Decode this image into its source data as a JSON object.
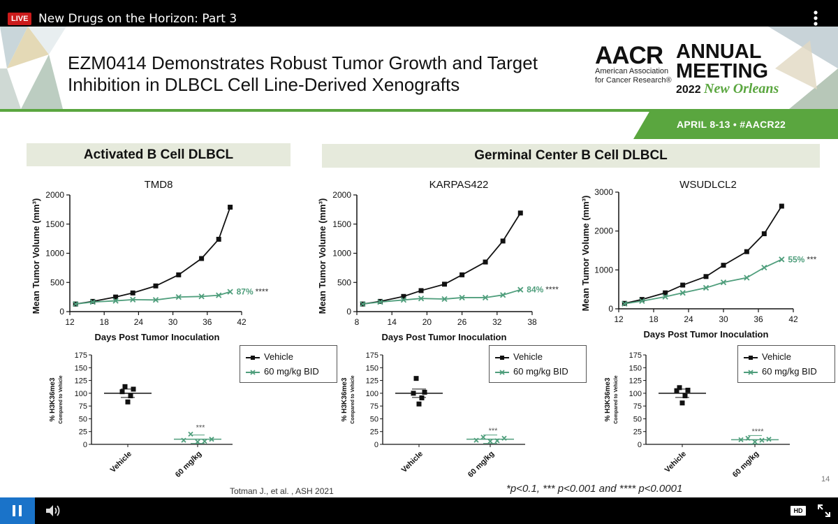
{
  "player": {
    "live_label": "LIVE",
    "title": "New Drugs on the Horizon: Part 3",
    "hd_label": "HD",
    "colors": {
      "live": "#cc1b1b",
      "pause": "#1a73c9"
    }
  },
  "slide": {
    "title": "EZM0414 Demonstrates Robust Tumor Growth and Target Inhibition in DLBCL Cell Line-Derived Xenografts",
    "logo": {
      "aacr": "AACR",
      "subtitle": "American Association\nfor Cancer Research®",
      "annual": "ANNUAL\nMEETING",
      "year": "2022",
      "city": "New Orleans"
    },
    "dates": "APRIL 8-13 • #AACR22",
    "section_abc": "Activated B Cell DLBCL",
    "section_gcb": "Germinal Center B Cell DLBCL",
    "xlabel": "Days Post Tumor Inoculation",
    "legend": {
      "vehicle": "Vehicle",
      "treated": "60 mg/kg BID"
    },
    "citation": "Totman J., et al. , ASH 2021",
    "pvalues": "*p<0.1, *** p<0.001 and **** p<0.0001",
    "slide_number": "14",
    "colors": {
      "vehicle": "#111111",
      "treated": "#4f9e7c",
      "accent": "#5aa63f"
    }
  },
  "chart_data": [
    {
      "type": "line",
      "title": "TMD8",
      "xlabel": "Days Post Tumor Inoculation",
      "ylabel": "Mean Tumor Volume (mm³)",
      "xlim": [
        12,
        42
      ],
      "ylim": [
        0,
        2000
      ],
      "xticks": [
        12,
        18,
        24,
        30,
        36,
        42
      ],
      "yticks": [
        0,
        500,
        1000,
        1500,
        2000
      ],
      "series": [
        {
          "name": "Vehicle",
          "x": [
            13,
            16,
            20,
            23,
            27,
            31,
            35,
            38,
            40
          ],
          "y": [
            130,
            175,
            250,
            320,
            440,
            630,
            910,
            1240,
            1790
          ]
        },
        {
          "name": "60 mg/kg BID",
          "x": [
            13,
            16,
            20,
            23,
            27,
            31,
            35,
            38,
            40
          ],
          "y": [
            130,
            165,
            185,
            205,
            200,
            250,
            260,
            280,
            340
          ]
        }
      ],
      "annotation": "87%",
      "significance": "****"
    },
    {
      "type": "line",
      "title": "KARPAS422",
      "xlabel": "Days Post Tumor Inoculation",
      "ylabel": "Mean Tumor Volume (mm³)",
      "xlim": [
        8,
        38
      ],
      "ylim": [
        0,
        2000
      ],
      "xticks": [
        8,
        14,
        20,
        26,
        32,
        38
      ],
      "yticks": [
        0,
        500,
        1000,
        1500,
        2000
      ],
      "series": [
        {
          "name": "Vehicle",
          "x": [
            9,
            12,
            16,
            19,
            23,
            26,
            30,
            33,
            36
          ],
          "y": [
            130,
            175,
            260,
            360,
            470,
            630,
            850,
            1210,
            1690
          ]
        },
        {
          "name": "60 mg/kg BID",
          "x": [
            9,
            12,
            16,
            19,
            23,
            26,
            30,
            33,
            36
          ],
          "y": [
            130,
            165,
            200,
            225,
            215,
            240,
            240,
            285,
            375
          ]
        }
      ],
      "annotation": "84%",
      "significance": "****"
    },
    {
      "type": "line",
      "title": "WSUDLCL2",
      "xlabel": "Days Post Tumor Inoculation",
      "ylabel": "Mean Tumor Volume (mm³)",
      "xlim": [
        12,
        42
      ],
      "ylim": [
        0,
        3000
      ],
      "xticks": [
        12,
        18,
        24,
        30,
        36,
        42
      ],
      "yticks": [
        0,
        1000,
        2000,
        3000
      ],
      "series": [
        {
          "name": "Vehicle",
          "x": [
            13,
            16,
            20,
            23,
            27,
            30,
            34,
            37,
            40
          ],
          "y": [
            140,
            240,
            410,
            610,
            830,
            1120,
            1470,
            1930,
            2640
          ]
        },
        {
          "name": "60 mg/kg BID",
          "x": [
            13,
            16,
            20,
            23,
            27,
            30,
            34,
            37,
            40
          ],
          "y": [
            130,
            200,
            310,
            410,
            540,
            680,
            800,
            1060,
            1270
          ]
        }
      ],
      "annotation": "55%",
      "significance": "***"
    },
    {
      "type": "scatter",
      "ylabel": "% H3K36me3",
      "ylabel2": "Compared to Vehicle",
      "categories": [
        "Vehicle",
        "60 mg/kg"
      ],
      "ylim": [
        0,
        175
      ],
      "yticks": [
        0,
        25,
        50,
        75,
        100,
        125,
        150,
        175
      ],
      "series": [
        {
          "name": "Vehicle",
          "values": [
            113,
            108,
            103,
            95,
            83
          ],
          "mean": 100
        },
        {
          "name": "60 mg/kg",
          "values": [
            20,
            10,
            8,
            6,
            5
          ],
          "mean": 10
        }
      ],
      "significance": "***"
    },
    {
      "type": "scatter",
      "ylabel": "% H3K36me3",
      "ylabel2": "Compared to Vehicle",
      "categories": [
        "Vehicle",
        "60 mg/kg"
      ],
      "ylim": [
        0,
        175
      ],
      "yticks": [
        0,
        25,
        50,
        75,
        100,
        125,
        150,
        175
      ],
      "series": [
        {
          "name": "Vehicle",
          "values": [
            129,
            102,
            100,
            91,
            79
          ],
          "mean": 100
        },
        {
          "name": "60 mg/kg",
          "values": [
            14,
            12,
            8,
            7,
            6
          ],
          "mean": 10
        }
      ],
      "significance": "***"
    },
    {
      "type": "scatter",
      "ylabel": "% H3K36me3",
      "ylabel2": "Compared to Vehicle",
      "categories": [
        "Vehicle",
        "60 mg/kg"
      ],
      "ylim": [
        0,
        175
      ],
      "yticks": [
        0,
        25,
        50,
        75,
        100,
        125,
        150,
        175
      ],
      "series": [
        {
          "name": "Vehicle",
          "values": [
            111,
            106,
            105,
            95,
            81
          ],
          "mean": 100
        },
        {
          "name": "60 mg/kg",
          "values": [
            12,
            10,
            9,
            8,
            5
          ],
          "mean": 9
        }
      ],
      "significance": "****"
    }
  ]
}
